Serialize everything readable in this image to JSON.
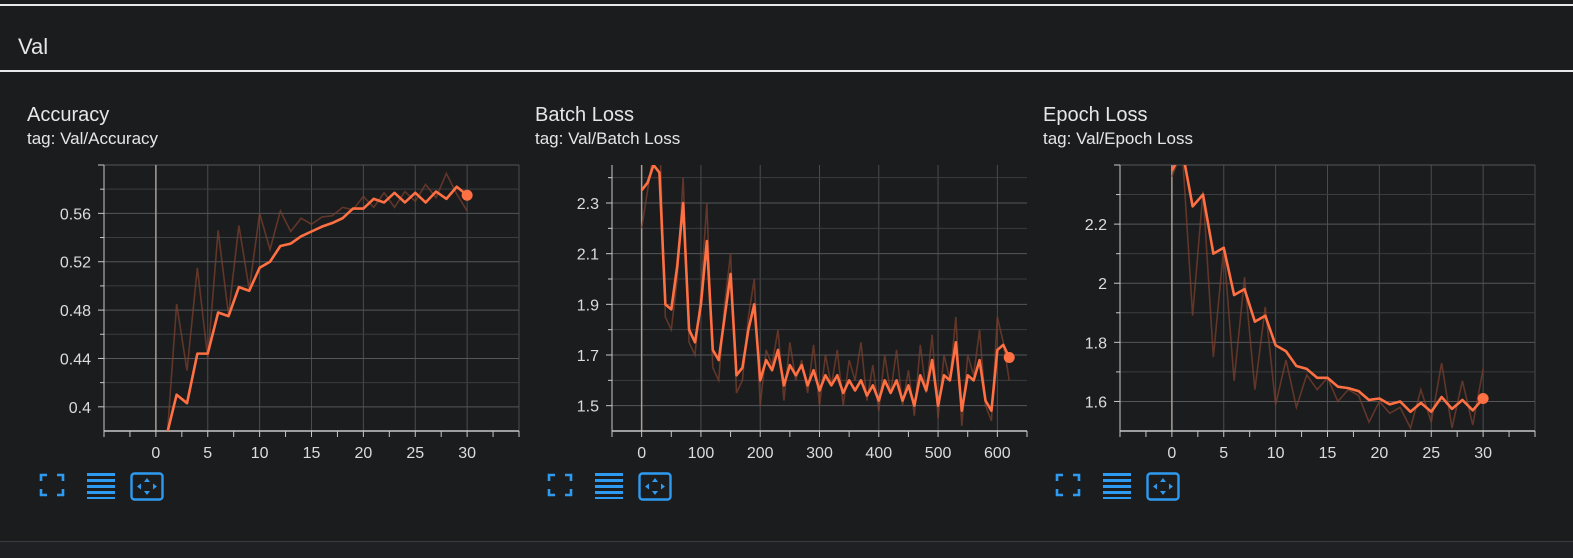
{
  "section": {
    "title": "Val"
  },
  "colors": {
    "accent": "#ff7043",
    "raw": "#7a3f2c",
    "grid": "#4a4b4e",
    "axis": "#c8c8c8",
    "zero": "#a89f95",
    "icon": "#2f9bf0"
  },
  "toolbar_icons": [
    "fullscreen-icon",
    "toggle-log-scale-icon",
    "fit-domain-icon"
  ],
  "chart_data": [
    {
      "type": "line",
      "title": "Accuracy",
      "tag": "tag: Val/Accuracy",
      "xlim": [
        -5,
        35
      ],
      "ylim": [
        0.38,
        0.6
      ],
      "xticks": [
        0,
        5,
        10,
        15,
        20,
        25,
        30
      ],
      "xtick_labels": [
        "0",
        "5",
        "10",
        "15",
        "20",
        "25",
        "30"
      ],
      "yticks": [
        0.4,
        0.44,
        0.48,
        0.52,
        0.56
      ],
      "ytick_labels": [
        "0.4",
        "0.44",
        "0.48",
        "0.52",
        "0.56"
      ],
      "series": [
        {
          "x": [
            1,
            2,
            3,
            4,
            5,
            6,
            7,
            8,
            9,
            10,
            11,
            12,
            13,
            14,
            15,
            16,
            17,
            18,
            19,
            20,
            21,
            22,
            23,
            24,
            25,
            26,
            27,
            28,
            29,
            30
          ],
          "raw": [
            0.365,
            0.485,
            0.43,
            0.515,
            0.44,
            0.546,
            0.476,
            0.55,
            0.497,
            0.56,
            0.53,
            0.562,
            0.545,
            0.556,
            0.551,
            0.557,
            0.558,
            0.565,
            0.563,
            0.574,
            0.565,
            0.577,
            0.565,
            0.578,
            0.57,
            0.584,
            0.573,
            0.593,
            0.576,
            0.562
          ],
          "smoothed": [
            0.375,
            0.41,
            0.403,
            0.444,
            0.444,
            0.478,
            0.475,
            0.499,
            0.496,
            0.515,
            0.52,
            0.533,
            0.535,
            0.541,
            0.545,
            0.549,
            0.552,
            0.556,
            0.564,
            0.564,
            0.572,
            0.569,
            0.577,
            0.569,
            0.577,
            0.569,
            0.578,
            0.572,
            0.582,
            0.575
          ]
        }
      ]
    },
    {
      "type": "line",
      "title": "Batch Loss",
      "tag": "tag: Val/Batch Loss",
      "xlim": [
        -50,
        650
      ],
      "ylim": [
        1.4,
        2.45
      ],
      "xticks": [
        0,
        100,
        200,
        300,
        400,
        500,
        600
      ],
      "xtick_labels": [
        "0",
        "100",
        "200",
        "300",
        "400",
        "500",
        "600"
      ],
      "yticks": [
        1.5,
        1.7,
        1.9,
        2.1,
        2.3
      ],
      "ytick_labels": [
        "1.5",
        "1.7",
        "1.9",
        "2.1",
        "2.3"
      ],
      "series": [
        {
          "x": [
            0,
            10,
            20,
            30,
            40,
            50,
            60,
            70,
            80,
            90,
            100,
            110,
            120,
            130,
            140,
            150,
            160,
            170,
            180,
            190,
            200,
            210,
            220,
            230,
            240,
            250,
            260,
            270,
            280,
            290,
            300,
            310,
            320,
            330,
            340,
            350,
            360,
            370,
            380,
            390,
            400,
            410,
            420,
            430,
            440,
            450,
            460,
            470,
            480,
            490,
            500,
            510,
            520,
            530,
            540,
            550,
            560,
            570,
            580,
            590,
            600,
            610,
            620
          ],
          "raw": [
            2.2,
            2.35,
            2.5,
            2.6,
            1.85,
            1.8,
            2.0,
            2.4,
            1.75,
            1.7,
            1.95,
            2.3,
            1.65,
            1.6,
            1.9,
            2.1,
            1.55,
            1.6,
            1.85,
            2.0,
            1.5,
            1.72,
            1.66,
            1.8,
            1.52,
            1.75,
            1.6,
            1.68,
            1.55,
            1.74,
            1.5,
            1.7,
            1.58,
            1.72,
            1.5,
            1.68,
            1.6,
            1.75,
            1.52,
            1.66,
            1.48,
            1.7,
            1.55,
            1.72,
            1.5,
            1.64,
            1.46,
            1.74,
            1.55,
            1.78,
            1.45,
            1.7,
            1.6,
            1.85,
            1.42,
            1.7,
            1.62,
            1.8,
            1.5,
            1.44,
            1.85,
            1.75,
            1.6
          ],
          "smoothed": [
            2.35,
            2.38,
            2.45,
            2.42,
            1.9,
            1.88,
            2.05,
            2.3,
            1.8,
            1.75,
            1.9,
            2.15,
            1.72,
            1.68,
            1.85,
            2.02,
            1.62,
            1.65,
            1.8,
            1.9,
            1.6,
            1.68,
            1.64,
            1.72,
            1.58,
            1.66,
            1.62,
            1.66,
            1.58,
            1.64,
            1.56,
            1.62,
            1.58,
            1.62,
            1.55,
            1.6,
            1.56,
            1.6,
            1.54,
            1.58,
            1.52,
            1.6,
            1.55,
            1.6,
            1.52,
            1.58,
            1.5,
            1.62,
            1.56,
            1.68,
            1.5,
            1.62,
            1.6,
            1.75,
            1.48,
            1.62,
            1.6,
            1.68,
            1.52,
            1.48,
            1.72,
            1.74,
            1.69
          ]
        }
      ]
    },
    {
      "type": "line",
      "title": "Epoch Loss",
      "tag": "tag: Val/Epoch Loss",
      "xlim": [
        -5,
        35
      ],
      "ylim": [
        1.5,
        2.4
      ],
      "xticks": [
        0,
        5,
        10,
        15,
        20,
        25,
        30
      ],
      "xtick_labels": [
        "0",
        "5",
        "10",
        "15",
        "20",
        "25",
        "30"
      ],
      "yticks": [
        1.6,
        1.8,
        2,
        2.2
      ],
      "ytick_labels": [
        "1.6",
        "1.8",
        "2",
        "2.2"
      ],
      "series": [
        {
          "x": [
            0,
            1,
            2,
            3,
            4,
            5,
            6,
            7,
            8,
            9,
            10,
            11,
            12,
            13,
            14,
            15,
            16,
            17,
            18,
            19,
            20,
            21,
            22,
            23,
            24,
            25,
            26,
            27,
            28,
            29,
            30
          ],
          "raw": [
            2.36,
            2.45,
            1.89,
            2.31,
            1.75,
            2.12,
            1.67,
            2.02,
            1.64,
            1.92,
            1.59,
            1.74,
            1.58,
            1.69,
            1.64,
            1.68,
            1.6,
            1.64,
            1.62,
            1.53,
            1.6,
            1.56,
            1.58,
            1.51,
            1.64,
            1.53,
            1.73,
            1.51,
            1.67,
            1.52,
            1.71
          ],
          "smoothed": [
            2.38,
            2.45,
            2.26,
            2.3,
            2.1,
            2.12,
            1.96,
            1.98,
            1.87,
            1.89,
            1.79,
            1.77,
            1.72,
            1.71,
            1.68,
            1.68,
            1.65,
            1.645,
            1.635,
            1.605,
            1.61,
            1.59,
            1.6,
            1.565,
            1.595,
            1.565,
            1.615,
            1.575,
            1.605,
            1.57,
            1.61
          ]
        }
      ]
    }
  ]
}
